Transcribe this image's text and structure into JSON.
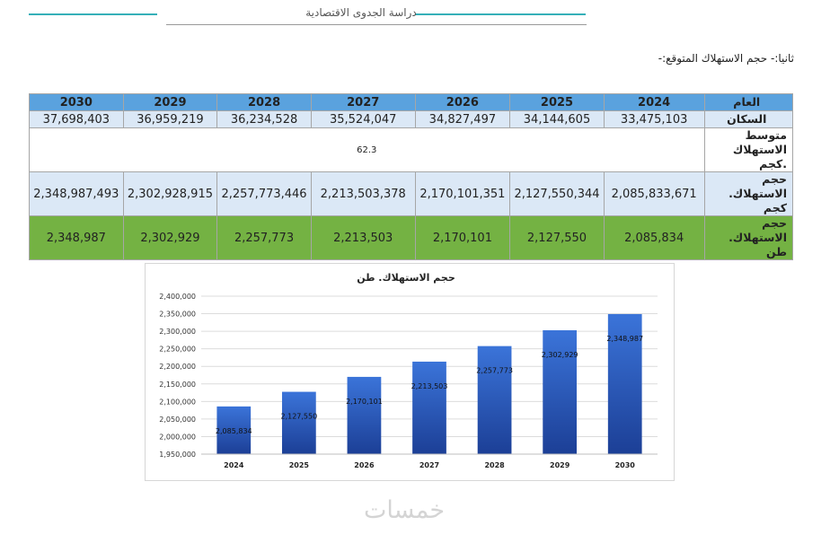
{
  "header": {
    "title": "دراسة الجدوى الاقتصادية"
  },
  "section_title": "ثانيا:- حجم الاستهلاك المتوقع:-",
  "table": {
    "year_label": "العام",
    "years": [
      "2024",
      "2025",
      "2026",
      "2027",
      "2028",
      "2029",
      "2030"
    ],
    "population_label": "السكان",
    "population": [
      "33,475,103",
      "34,144,605",
      "34,827,497",
      "35,524,047",
      "36,234,528",
      "36,959,219",
      "37,698,403"
    ],
    "avg_label": "متوسط الاستهلاك .كجم",
    "avg_value": "62.3",
    "kg_label": "حجم الاستهلاك. كجم",
    "kg": [
      "2,085,833,671",
      "2,127,550,344",
      "2,170,101,351",
      "2,213,503,378",
      "2,257,773,446",
      "2,302,928,915",
      "2,348,987,493"
    ],
    "ton_label": "حجم الاستهلاك. طن",
    "ton": [
      "2,085,834",
      "2,127,550",
      "2,170,101",
      "2,213,503",
      "2,257,773",
      "2,302,929",
      "2,348,987"
    ]
  },
  "chart_data": {
    "type": "bar",
    "title": "حجم الاستهلاك. طن",
    "categories": [
      "2024",
      "2025",
      "2026",
      "2027",
      "2028",
      "2029",
      "2030"
    ],
    "values": [
      2085834,
      2127550,
      2170101,
      2213503,
      2257773,
      2302929,
      2348987
    ],
    "data_labels": [
      "2,085,834",
      "2,127,550",
      "2,170,101",
      "2,213,503",
      "2,257,773",
      "2,302,929",
      "2,348,987"
    ],
    "ylim": [
      1950000,
      2400000
    ],
    "yticks": [
      "1,950,000",
      "2,000,000",
      "2,050,000",
      "2,100,000",
      "2,150,000",
      "2,200,000",
      "2,250,000",
      "2,300,000",
      "2,350,000",
      "2,400,000"
    ],
    "grid": true,
    "legend": "none",
    "bar_color": "#2f62c6"
  },
  "watermark": "خمسات"
}
